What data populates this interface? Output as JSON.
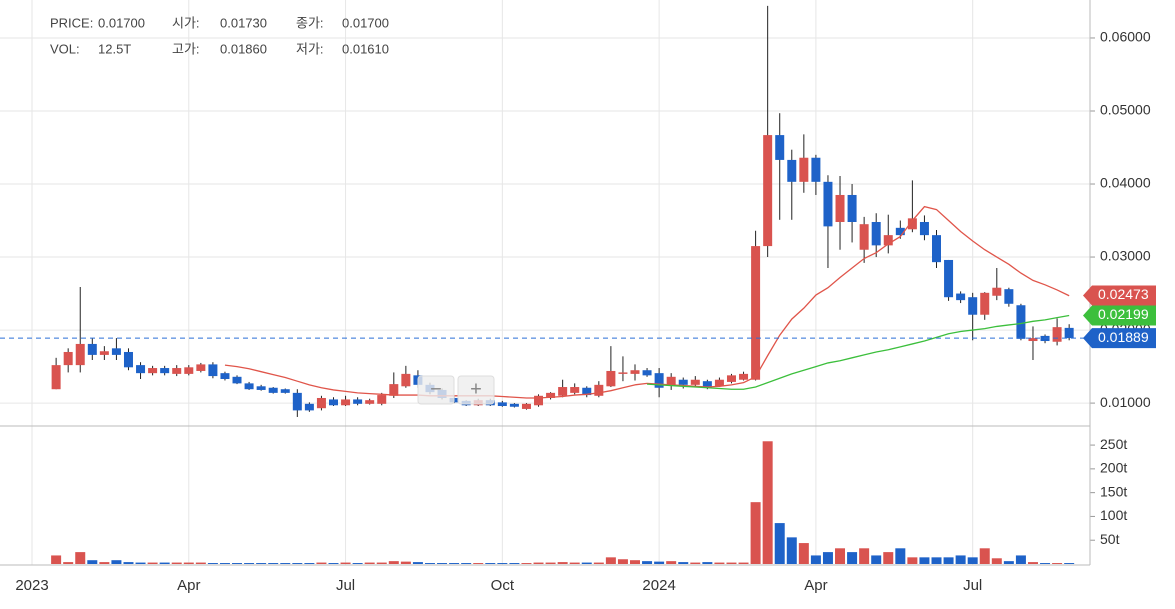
{
  "header": {
    "rows": [
      [
        "PRICE:",
        "0.01700",
        "시가:",
        "0.01730",
        "종가:",
        "0.01700"
      ],
      [
        "VOL:",
        "12.5T",
        "고가:",
        "0.01860",
        "저가:",
        "0.01610"
      ]
    ]
  },
  "zoom_buttons": [
    "−",
    "+"
  ],
  "chart_data": {
    "type": "candlestick",
    "up_color": "#d9534f",
    "down_color": "#1e62c8",
    "categories": [
      "2023",
      null,
      null,
      null,
      null,
      null,
      null,
      null,
      null,
      null,
      null,
      null,
      null,
      "Apr",
      null,
      null,
      null,
      null,
      null,
      null,
      null,
      null,
      null,
      null,
      null,
      null,
      "Jul",
      null,
      null,
      null,
      null,
      null,
      null,
      null,
      null,
      null,
      null,
      null,
      null,
      "Oct",
      null,
      null,
      null,
      null,
      null,
      null,
      null,
      null,
      null,
      null,
      null,
      null,
      "2024",
      null,
      null,
      null,
      null,
      null,
      null,
      null,
      null,
      null,
      null,
      null,
      null,
      "Apr",
      null,
      null,
      null,
      null,
      null,
      null,
      null,
      null,
      null,
      null,
      null,
      null,
      "Jul",
      null,
      null,
      null,
      null,
      null,
      null,
      null,
      null
    ],
    "open": [
      null,
      null,
      0.0119,
      0.0152,
      0.0152,
      0.0181,
      0.0166,
      0.0175,
      0.017,
      0.0152,
      0.0141,
      0.0148,
      0.014,
      0.014,
      0.0144,
      0.0153,
      0.0141,
      0.0136,
      0.0127,
      0.0123,
      0.0121,
      0.0119,
      0.0114,
      0.0099,
      0.0093,
      0.0105,
      0.0097,
      0.0105,
      0.0099,
      0.0099,
      0.011,
      0.0123,
      0.0138,
      0.0125,
      0.0118,
      0.0107,
      0.0103,
      0.0097,
      0.0104,
      0.0101,
      0.0099,
      0.0092,
      0.0097,
      0.0107,
      0.011,
      0.0114,
      0.0121,
      0.011,
      0.0123,
      0.014,
      0.014,
      0.0145,
      0.0141,
      0.0125,
      0.0132,
      0.0125,
      0.013,
      0.0123,
      0.0129,
      0.0132,
      0.0132,
      0.0315,
      0.0467,
      0.0433,
      0.0403,
      0.0436,
      0.0403,
      0.0348,
      0.0385,
      0.031,
      0.0348,
      0.0316,
      0.034,
      0.0338,
      0.0348,
      0.033,
      0.0296,
      0.025,
      0.0245,
      0.0221,
      0.0247,
      0.0256,
      0.0234,
      0.0185,
      0.0192,
      0.0184,
      0.0203
    ],
    "high": [
      null,
      null,
      0.0162,
      0.0175,
      0.0259,
      0.0189,
      0.0178,
      0.0189,
      0.0175,
      0.0156,
      0.0151,
      0.0151,
      0.0152,
      0.0152,
      0.0155,
      0.0156,
      0.0143,
      0.0138,
      0.0129,
      0.0125,
      0.0122,
      0.012,
      0.0119,
      0.0101,
      0.011,
      0.0108,
      0.011,
      0.0108,
      0.0106,
      0.0114,
      0.0142,
      0.0151,
      0.0145,
      0.0128,
      0.012,
      0.0109,
      0.0104,
      0.0106,
      0.0106,
      0.0103,
      0.01,
      0.01,
      0.0112,
      0.0115,
      0.0132,
      0.0127,
      0.0123,
      0.013,
      0.0178,
      0.0164,
      0.0153,
      0.0148,
      0.0148,
      0.0141,
      0.0135,
      0.0137,
      0.0132,
      0.0135,
      0.014,
      0.0143,
      0.0336,
      0.0644,
      0.0497,
      0.0447,
      0.0468,
      0.044,
      0.0412,
      0.0411,
      0.04,
      0.0355,
      0.036,
      0.0358,
      0.035,
      0.0405,
      0.0357,
      0.0337,
      0.0296,
      0.0253,
      0.0251,
      0.0252,
      0.0285,
      0.0258,
      0.0236,
      0.0205,
      0.0194,
      0.0216,
      0.0208
    ],
    "low": [
      null,
      null,
      0.0119,
      0.0142,
      0.0142,
      0.0159,
      0.0159,
      0.0159,
      0.0145,
      0.0133,
      0.0138,
      0.0138,
      0.0137,
      0.0138,
      0.0142,
      0.0134,
      0.0131,
      0.0126,
      0.0118,
      0.0117,
      0.0113,
      0.0113,
      0.0081,
      0.0088,
      0.009,
      0.0096,
      0.0096,
      0.0097,
      0.0098,
      0.0097,
      0.0107,
      0.0121,
      0.0121,
      0.0112,
      0.0105,
      0.01,
      0.0096,
      0.0096,
      0.0096,
      0.0095,
      0.0094,
      0.0091,
      0.0095,
      0.0105,
      0.0108,
      0.0112,
      0.0108,
      0.0108,
      0.0122,
      0.013,
      0.0131,
      0.0136,
      0.0108,
      0.0118,
      0.012,
      0.0122,
      0.0119,
      0.0122,
      0.0127,
      0.0131,
      0.0131,
      0.03,
      0.0351,
      0.0351,
      0.0388,
      0.0385,
      0.0285,
      0.031,
      0.032,
      0.0292,
      0.03,
      0.0305,
      0.0325,
      0.0334,
      0.0323,
      0.0285,
      0.024,
      0.0237,
      0.0186,
      0.0214,
      0.0241,
      0.0232,
      0.0186,
      0.0159,
      0.0182,
      0.0179,
      0.0186
    ],
    "close": [
      null,
      null,
      0.0152,
      0.017,
      0.0181,
      0.0166,
      0.0171,
      0.0166,
      0.0149,
      0.0141,
      0.0148,
      0.0141,
      0.0148,
      0.0149,
      0.0153,
      0.0137,
      0.0133,
      0.0127,
      0.0119,
      0.0118,
      0.0114,
      0.0114,
      0.009,
      0.009,
      0.0107,
      0.0097,
      0.0105,
      0.0099,
      0.0104,
      0.0111,
      0.0126,
      0.014,
      0.0125,
      0.0115,
      0.0107,
      0.0101,
      0.0097,
      0.0104,
      0.0097,
      0.0096,
      0.0095,
      0.0099,
      0.011,
      0.0114,
      0.0122,
      0.0122,
      0.0111,
      0.0125,
      0.0144,
      0.0142,
      0.0145,
      0.0138,
      0.0121,
      0.0136,
      0.0125,
      0.0132,
      0.0121,
      0.0132,
      0.0138,
      0.014,
      0.0315,
      0.0467,
      0.0433,
      0.0403,
      0.0436,
      0.0403,
      0.0342,
      0.0385,
      0.0348,
      0.0345,
      0.0316,
      0.033,
      0.033,
      0.0353,
      0.033,
      0.0293,
      0.0245,
      0.0241,
      0.0221,
      0.0251,
      0.0258,
      0.0236,
      0.0188,
      0.0189,
      0.0185,
      0.0204,
      0.0189
    ],
    "series": [
      {
        "color": "#e0554a",
        "values": [
          null,
          null,
          null,
          null,
          null,
          null,
          null,
          null,
          null,
          null,
          null,
          null,
          null,
          null,
          null,
          null,
          0.0152,
          0.015,
          0.0147,
          0.0143,
          0.0139,
          0.0135,
          0.013,
          0.0125,
          0.0121,
          0.0118,
          0.0116,
          0.0114,
          0.0113,
          0.0112,
          0.0111,
          0.0111,
          0.0111,
          0.011,
          0.011,
          0.011,
          0.011,
          0.011,
          0.011,
          0.0109,
          0.0108,
          0.0107,
          0.0107,
          0.0108,
          0.0109,
          0.0111,
          0.0112,
          0.0114,
          0.0117,
          0.0121,
          0.0125,
          0.0127,
          0.0126,
          0.0125,
          0.0124,
          0.0123,
          0.0122,
          0.0123,
          0.0125,
          0.0128,
          0.0136,
          0.0165,
          0.0193,
          0.0215,
          0.023,
          0.0248,
          0.0258,
          0.0272,
          0.0285,
          0.0298,
          0.0306,
          0.0318,
          0.0328,
          0.035,
          0.0369,
          0.0365,
          0.035,
          0.0335,
          0.0322,
          0.031,
          0.03,
          0.029,
          0.0278,
          0.0268,
          0.0262,
          0.0255,
          0.0247
        ]
      },
      {
        "color": "#3cbf3c",
        "values": [
          null,
          null,
          null,
          null,
          null,
          null,
          null,
          null,
          null,
          null,
          null,
          null,
          null,
          null,
          null,
          null,
          null,
          null,
          null,
          null,
          null,
          null,
          null,
          null,
          null,
          null,
          null,
          null,
          null,
          null,
          null,
          null,
          null,
          null,
          null,
          null,
          null,
          null,
          null,
          null,
          null,
          null,
          null,
          null,
          null,
          null,
          null,
          null,
          null,
          null,
          null,
          0.0126,
          0.0125,
          0.0124,
          0.0123,
          0.0122,
          0.0121,
          0.012,
          0.0119,
          0.0119,
          0.0122,
          0.0128,
          0.0134,
          0.014,
          0.0145,
          0.015,
          0.0155,
          0.0158,
          0.0162,
          0.0166,
          0.017,
          0.0173,
          0.0177,
          0.0181,
          0.0185,
          0.019,
          0.0195,
          0.0198,
          0.02,
          0.0202,
          0.0205,
          0.0207,
          0.0209,
          0.0212,
          0.0214,
          0.0217,
          0.022
        ]
      }
    ],
    "ylim": [
      0.007,
      0.0652
    ],
    "yticks": [
      {
        "value": 0.01,
        "label": "0.01000"
      },
      {
        "value": 0.02,
        "label": "0.02000"
      },
      {
        "value": 0.03,
        "label": "0.03000"
      },
      {
        "value": 0.04,
        "label": "0.04000"
      },
      {
        "value": 0.05,
        "label": "0.05000"
      },
      {
        "value": 0.06,
        "label": "0.06000"
      }
    ],
    "price_labels": [
      {
        "value": 0.02473,
        "color": "#d9534f"
      },
      {
        "value": 0.02199,
        "color": "#3cbf3c"
      },
      {
        "value": 0.01889,
        "color": "#1e62c8"
      }
    ],
    "price_line": 0.01889,
    "grid": true,
    "volume": {
      "values": [
        null,
        null,
        18,
        4,
        25,
        8,
        4,
        8,
        4,
        3,
        3,
        3,
        3,
        3,
        3,
        2,
        2,
        2,
        2,
        2,
        2,
        2,
        2,
        2,
        3,
        2,
        3,
        2,
        3,
        3,
        6,
        5,
        4,
        2,
        2,
        2,
        2,
        2,
        2,
        2,
        2,
        2,
        3,
        3,
        4,
        3,
        3,
        3,
        14,
        10,
        8,
        6,
        5,
        6,
        4,
        3,
        4,
        3,
        3,
        3,
        130,
        258,
        86,
        56,
        44,
        18,
        25,
        33,
        25,
        33,
        18,
        25,
        33,
        14,
        14,
        14,
        14,
        18,
        14,
        33,
        12,
        6,
        18,
        4,
        2,
        2,
        2
      ],
      "ylim": [
        0,
        288
      ],
      "yticks": [
        {
          "value": 50,
          "label": "50t"
        },
        {
          "value": 100,
          "label": "100t"
        },
        {
          "value": 150,
          "label": "150t"
        },
        {
          "value": 200,
          "label": "200t"
        },
        {
          "value": 250,
          "label": "250t"
        }
      ]
    }
  }
}
